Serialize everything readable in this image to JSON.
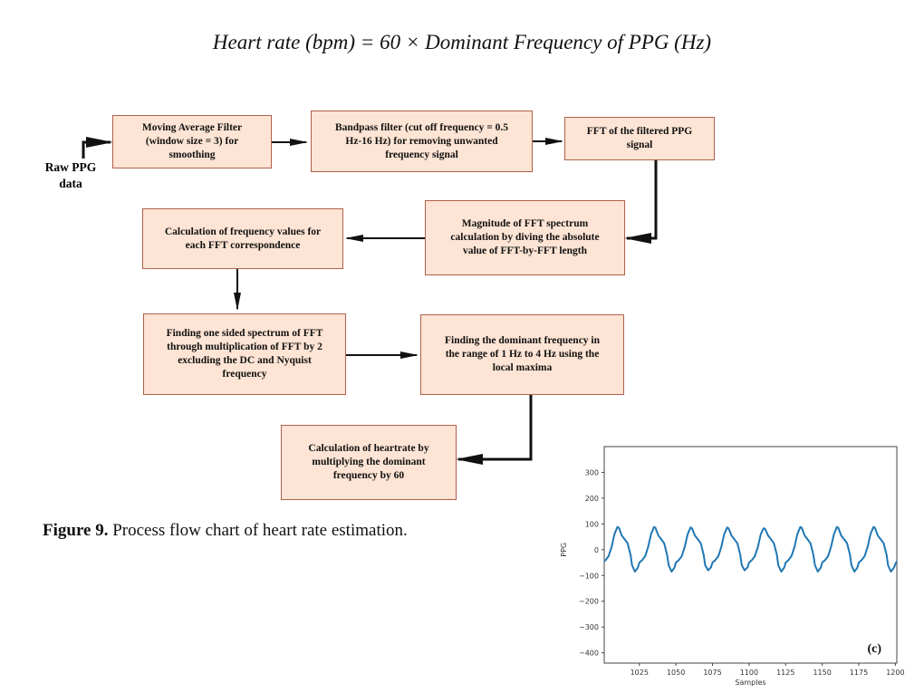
{
  "formula": "Heart  rate (bpm) = 60 × Dominant Frequency of PPG (Hz)",
  "input_label": [
    "Raw PPG",
    "data"
  ],
  "boxes": [
    {
      "lines": [
        "Moving Average Filter",
        "(window size = 3) for",
        "smoothing"
      ]
    },
    {
      "lines": [
        "Bandpass filter (cut off frequency = 0.5",
        "Hz-16 Hz) for removing unwanted",
        "frequency signal"
      ]
    },
    {
      "lines": [
        "FFT of the filtered PPG",
        "signal"
      ]
    },
    {
      "lines": [
        "Magnitude of FFT spectrum",
        "calculation by diving the absolute",
        "value of FFT-by-FFT length"
      ]
    },
    {
      "lines": [
        "Calculation of frequency values for",
        "each FFT correspondence"
      ]
    },
    {
      "lines": [
        "Finding one sided spectrum of FFT",
        "through multiplication of FFT by 2",
        "excluding the DC and Nyquist",
        "frequency"
      ]
    },
    {
      "lines": [
        "Finding the dominant frequency in",
        "the range of 1 Hz to 4 Hz using the",
        "local maxima"
      ]
    },
    {
      "lines": [
        "Calculation of heartrate by",
        "multiplying the dominant",
        "frequency by 60"
      ]
    }
  ],
  "caption": {
    "label": "Figure 9.",
    "text": " Process flow chart of heart rate estimation."
  },
  "colors": {
    "box_fill": "#fde4d4",
    "box_border": "#b0604a",
    "line": "#1f77b4"
  },
  "chart_data": {
    "type": "line",
    "xlabel": "Samples",
    "ylabel": "PPG",
    "panel_label": "(c)",
    "xlim": [
      1001,
      1201
    ],
    "ylim": [
      -440,
      400
    ],
    "xticks": [
      1025,
      1050,
      1075,
      1100,
      1125,
      1150,
      1175,
      1200
    ],
    "yticks": [
      300,
      200,
      100,
      0,
      -100,
      -200,
      -300,
      -400
    ],
    "grid": false,
    "points": [
      [
        1001,
        -45
      ],
      [
        1002,
        -40
      ],
      [
        1004,
        -25
      ],
      [
        1006,
        10
      ],
      [
        1008,
        60
      ],
      [
        1010,
        88
      ],
      [
        1011,
        85
      ],
      [
        1013,
        55
      ],
      [
        1015,
        40
      ],
      [
        1017,
        25
      ],
      [
        1019,
        -20
      ],
      [
        1020,
        -60
      ],
      [
        1022,
        -85
      ],
      [
        1024,
        -70
      ],
      [
        1025,
        -50
      ],
      [
        1027,
        -40
      ],
      [
        1029,
        -25
      ],
      [
        1031,
        10
      ],
      [
        1033,
        60
      ],
      [
        1035,
        88
      ],
      [
        1036,
        85
      ],
      [
        1038,
        55
      ],
      [
        1040,
        40
      ],
      [
        1042,
        25
      ],
      [
        1044,
        -20
      ],
      [
        1045,
        -60
      ],
      [
        1047,
        -85
      ],
      [
        1049,
        -70
      ],
      [
        1050,
        -50
      ],
      [
        1052,
        -40
      ],
      [
        1054,
        -25
      ],
      [
        1056,
        10
      ],
      [
        1058,
        60
      ],
      [
        1060,
        86
      ],
      [
        1061,
        83
      ],
      [
        1063,
        55
      ],
      [
        1065,
        40
      ],
      [
        1067,
        25
      ],
      [
        1069,
        -20
      ],
      [
        1070,
        -60
      ],
      [
        1072,
        -80
      ],
      [
        1074,
        -68
      ],
      [
        1075,
        -50
      ],
      [
        1077,
        -40
      ],
      [
        1079,
        -25
      ],
      [
        1081,
        10
      ],
      [
        1083,
        60
      ],
      [
        1085,
        86
      ],
      [
        1086,
        83
      ],
      [
        1088,
        55
      ],
      [
        1090,
        40
      ],
      [
        1092,
        25
      ],
      [
        1094,
        -20
      ],
      [
        1095,
        -60
      ],
      [
        1097,
        -80
      ],
      [
        1099,
        -68
      ],
      [
        1100,
        -50
      ],
      [
        1102,
        -40
      ],
      [
        1104,
        -25
      ],
      [
        1106,
        10
      ],
      [
        1108,
        60
      ],
      [
        1110,
        83
      ],
      [
        1111,
        80
      ],
      [
        1113,
        55
      ],
      [
        1115,
        40
      ],
      [
        1117,
        25
      ],
      [
        1119,
        -20
      ],
      [
        1120,
        -60
      ],
      [
        1122,
        -85
      ],
      [
        1124,
        -70
      ],
      [
        1125,
        -50
      ],
      [
        1127,
        -40
      ],
      [
        1129,
        -25
      ],
      [
        1131,
        10
      ],
      [
        1133,
        60
      ],
      [
        1135,
        88
      ],
      [
        1136,
        85
      ],
      [
        1138,
        55
      ],
      [
        1140,
        40
      ],
      [
        1142,
        25
      ],
      [
        1144,
        -20
      ],
      [
        1145,
        -60
      ],
      [
        1147,
        -85
      ],
      [
        1149,
        -70
      ],
      [
        1150,
        -50
      ],
      [
        1152,
        -40
      ],
      [
        1154,
        -25
      ],
      [
        1156,
        10
      ],
      [
        1158,
        60
      ],
      [
        1160,
        88
      ],
      [
        1161,
        85
      ],
      [
        1163,
        55
      ],
      [
        1165,
        40
      ],
      [
        1167,
        25
      ],
      [
        1169,
        -20
      ],
      [
        1170,
        -60
      ],
      [
        1172,
        -85
      ],
      [
        1174,
        -70
      ],
      [
        1175,
        -50
      ],
      [
        1177,
        -40
      ],
      [
        1179,
        -25
      ],
      [
        1181,
        10
      ],
      [
        1183,
        60
      ],
      [
        1185,
        88
      ],
      [
        1186,
        85
      ],
      [
        1188,
        55
      ],
      [
        1190,
        40
      ],
      [
        1192,
        25
      ],
      [
        1194,
        -20
      ],
      [
        1195,
        -60
      ],
      [
        1197,
        -85
      ],
      [
        1199,
        -70
      ],
      [
        1200,
        -55
      ],
      [
        1201,
        -45
      ]
    ]
  }
}
